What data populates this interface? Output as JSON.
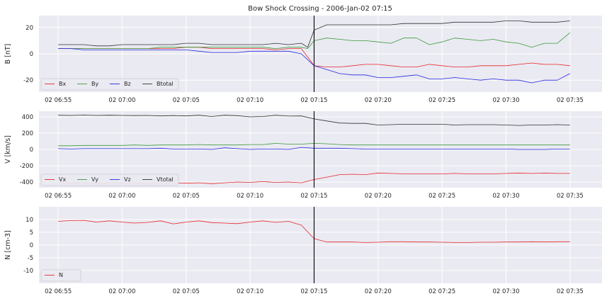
{
  "figure": {
    "title": "Bow Shock Crossing - 2006-Jan-02 07:15"
  },
  "chart_data": [
    {
      "type": "line",
      "ylabel": "B [nT]",
      "ylim": [
        -29,
        29
      ],
      "yticks": [
        -20,
        0,
        20
      ],
      "xlim": [
        -21.5,
        22.5
      ],
      "xticks": [
        {
          "value": -20,
          "label": "02 06:55"
        },
        {
          "value": -15,
          "label": "02 07:00"
        },
        {
          "value": -10,
          "label": "02 07:05"
        },
        {
          "value": -5,
          "label": "02 07:10"
        },
        {
          "value": 0,
          "label": "02 07:15"
        },
        {
          "value": 5,
          "label": "02 07:20"
        },
        {
          "value": 10,
          "label": "02 07:25"
        },
        {
          "value": 15,
          "label": "02 07:30"
        },
        {
          "value": 20,
          "label": "02 07:35"
        }
      ],
      "vline": 0,
      "grid": true,
      "legend_position": "lower-left",
      "legend_columns": 4,
      "series": [
        {
          "name": "Bx",
          "color": "#e8262b",
          "x": [
            -20,
            -19,
            -18,
            -17,
            -16,
            -15,
            -14,
            -13,
            -12,
            -11,
            -10,
            -9,
            -8,
            -7,
            -6,
            -5,
            -4,
            -3,
            -2,
            -1,
            0,
            1,
            2,
            3,
            4,
            5,
            6,
            7,
            8,
            9,
            10,
            11,
            12,
            13,
            14,
            15,
            16,
            17,
            18,
            19,
            20
          ],
          "y": [
            4,
            4,
            4,
            4,
            4,
            4,
            4,
            4,
            4,
            4,
            5,
            5,
            4,
            4,
            4,
            4,
            4,
            3,
            4,
            4,
            -9,
            -10,
            -10,
            -9,
            -8,
            -8,
            -9,
            -10,
            -10,
            -8,
            -9,
            -10,
            -10,
            -9,
            -9,
            -9,
            -8,
            -7,
            -8,
            -8,
            -9
          ]
        },
        {
          "name": "By",
          "color": "#3c9a3c",
          "x": [
            -20,
            -19,
            -18,
            -17,
            -16,
            -15,
            -14,
            -13,
            -12,
            -11,
            -10,
            -9,
            -8,
            -7,
            -6,
            -5,
            -4,
            -3,
            -2,
            -1,
            -0.5,
            0,
            1,
            2,
            3,
            4,
            5,
            6,
            7,
            8,
            9,
            10,
            11,
            12,
            13,
            14,
            15,
            16,
            17,
            18,
            19,
            20
          ],
          "y": [
            4,
            4,
            4,
            4,
            4,
            4,
            4,
            4,
            5,
            5,
            5,
            5,
            5,
            5,
            5,
            5,
            5,
            4,
            5,
            5,
            4,
            10,
            12,
            11,
            10,
            10,
            9,
            8,
            12,
            12,
            7,
            9,
            12,
            11,
            10,
            11,
            9,
            8,
            5,
            8,
            8,
            16
          ]
        },
        {
          "name": "Bz",
          "color": "#2727e0",
          "x": [
            -20,
            -19,
            -18,
            -17,
            -16,
            -15,
            -14,
            -13,
            -12,
            -11,
            -10,
            -9,
            -8,
            -7,
            -6,
            -5,
            -4,
            -3,
            -2,
            -1,
            0,
            1,
            2,
            3,
            4,
            5,
            6,
            7,
            8,
            9,
            10,
            11,
            12,
            13,
            14,
            15,
            16,
            17,
            18,
            19,
            20
          ],
          "y": [
            4,
            4,
            3,
            3,
            3,
            3,
            3,
            3,
            3,
            3,
            3,
            2,
            1,
            1,
            1,
            2,
            2,
            2,
            2,
            0,
            -9,
            -12,
            -15,
            -16,
            -16,
            -18,
            -18,
            -17,
            -16,
            -19,
            -19,
            -18,
            -19,
            -20,
            -19,
            -20,
            -20,
            -22,
            -20,
            -20,
            -15
          ]
        },
        {
          "name": "Btotal",
          "color": "#333333",
          "x": [
            -20,
            -19,
            -18,
            -17,
            -16,
            -15,
            -14,
            -13,
            -12,
            -11,
            -10,
            -9,
            -8,
            -7,
            -6,
            -5,
            -4,
            -3,
            -2,
            -1,
            -0.5,
            0,
            1,
            2,
            3,
            4,
            5,
            6,
            7,
            8,
            9,
            10,
            11,
            12,
            13,
            14,
            15,
            16,
            17,
            18,
            19,
            20
          ],
          "y": [
            7,
            7,
            7,
            6,
            6,
            7,
            7,
            7,
            7,
            7,
            8,
            8,
            7,
            7,
            7,
            7,
            7,
            8,
            7,
            8,
            5,
            18,
            22,
            22,
            22,
            22,
            22,
            22,
            23,
            23,
            23,
            23,
            24,
            24,
            24,
            24,
            25,
            25,
            24,
            24,
            24,
            25
          ]
        }
      ]
    },
    {
      "type": "line",
      "ylabel": "V [km/s]",
      "ylim": [
        -470,
        470
      ],
      "yticks": [
        -400,
        -200,
        0,
        200,
        400
      ],
      "xlim": [
        -21.5,
        22.5
      ],
      "xticks": [
        {
          "value": -20,
          "label": "02 06:55"
        },
        {
          "value": -15,
          "label": "02 07:00"
        },
        {
          "value": -10,
          "label": "02 07:05"
        },
        {
          "value": -5,
          "label": "02 07:10"
        },
        {
          "value": 0,
          "label": "02 07:15"
        },
        {
          "value": 5,
          "label": "02 07:20"
        },
        {
          "value": 10,
          "label": "02 07:25"
        },
        {
          "value": 15,
          "label": "02 07:30"
        },
        {
          "value": 20,
          "label": "02 07:35"
        }
      ],
      "vline": 0,
      "grid": true,
      "legend_position": "lower-left",
      "legend_columns": 4,
      "series": [
        {
          "name": "Vx",
          "color": "#e8262b",
          "x": [
            -20,
            -19,
            -18,
            -17,
            -16,
            -15,
            -14,
            -13,
            -12,
            -11,
            -10,
            -9,
            -8,
            -7,
            -6,
            -5,
            -4,
            -3,
            -2,
            -1,
            0,
            1,
            2,
            3,
            4,
            5,
            6,
            7,
            8,
            9,
            10,
            11,
            12,
            13,
            14,
            15,
            16,
            17,
            18,
            19,
            20
          ],
          "y": [
            -410,
            -415,
            -410,
            -420,
            -410,
            -415,
            -410,
            -420,
            -410,
            -410,
            -415,
            -410,
            -420,
            -410,
            -400,
            -405,
            -395,
            -405,
            -400,
            -410,
            -370,
            -340,
            -310,
            -305,
            -310,
            -290,
            -295,
            -300,
            -300,
            -300,
            -300,
            -295,
            -300,
            -300,
            -300,
            -295,
            -290,
            -295,
            -290,
            -295,
            -295
          ]
        },
        {
          "name": "Vy",
          "color": "#3c9a3c",
          "x": [
            -20,
            -19,
            -18,
            -17,
            -16,
            -15,
            -14,
            -13,
            -12,
            -11,
            -10,
            -9,
            -8,
            -7,
            -6,
            -5,
            -4,
            -3,
            -2,
            -1,
            0,
            1,
            2,
            3,
            4,
            5,
            6,
            7,
            8,
            9,
            10,
            11,
            12,
            13,
            14,
            15,
            16,
            17,
            18,
            19,
            20
          ],
          "y": [
            45,
            45,
            50,
            50,
            50,
            50,
            55,
            50,
            55,
            55,
            55,
            60,
            55,
            55,
            55,
            60,
            60,
            75,
            65,
            65,
            75,
            70,
            60,
            55,
            55,
            55,
            55,
            55,
            55,
            55,
            55,
            55,
            55,
            55,
            55,
            55,
            55,
            55,
            55,
            55,
            55
          ]
        },
        {
          "name": "Vz",
          "color": "#2727e0",
          "x": [
            -20,
            -19,
            -18,
            -17,
            -16,
            -15,
            -14,
            -13,
            -12,
            -11,
            -10,
            -9,
            -8,
            -7,
            -6,
            -5,
            -4,
            -3,
            -2,
            -1,
            0,
            1,
            2,
            3,
            4,
            5,
            6,
            7,
            8,
            9,
            10,
            11,
            12,
            13,
            14,
            15,
            16,
            17,
            18,
            19,
            20
          ],
          "y": [
            10,
            5,
            10,
            10,
            10,
            10,
            10,
            10,
            15,
            5,
            5,
            5,
            0,
            20,
            10,
            0,
            5,
            5,
            0,
            25,
            15,
            15,
            15,
            10,
            5,
            5,
            5,
            5,
            5,
            5,
            5,
            5,
            5,
            5,
            5,
            5,
            0,
            0,
            0,
            5,
            5
          ]
        },
        {
          "name": "Vtotal",
          "color": "#333333",
          "x": [
            -20,
            -19,
            -18,
            -17,
            -16,
            -15,
            -14,
            -13,
            -12,
            -11,
            -10,
            -9,
            -8,
            -7,
            -6,
            -5,
            -4,
            -3,
            -2,
            -1,
            0,
            1,
            2,
            3,
            4,
            5,
            6,
            7,
            8,
            9,
            10,
            11,
            12,
            13,
            14,
            15,
            16,
            17,
            18,
            19,
            20
          ],
          "y": [
            420,
            418,
            422,
            418,
            420,
            418,
            416,
            418,
            412,
            416,
            412,
            420,
            405,
            420,
            415,
            400,
            405,
            420,
            410,
            412,
            375,
            350,
            325,
            320,
            320,
            300,
            305,
            310,
            310,
            310,
            310,
            300,
            305,
            305,
            305,
            300,
            295,
            300,
            300,
            305,
            300
          ]
        }
      ]
    },
    {
      "type": "line",
      "ylabel": "N [cm-3]",
      "ylim": [
        -15,
        15
      ],
      "yticks": [
        -10,
        -5,
        0,
        5,
        10
      ],
      "xlim": [
        -21.5,
        22.5
      ],
      "xticks": [
        {
          "value": -20,
          "label": "02 06:55"
        },
        {
          "value": -15,
          "label": "02 07:00"
        },
        {
          "value": -10,
          "label": "02 07:05"
        },
        {
          "value": -5,
          "label": "02 07:10"
        },
        {
          "value": 0,
          "label": "02 07:15"
        },
        {
          "value": 5,
          "label": "02 07:20"
        },
        {
          "value": 10,
          "label": "02 07:25"
        },
        {
          "value": 15,
          "label": "02 07:30"
        },
        {
          "value": 20,
          "label": "02 07:35"
        }
      ],
      "vline": 0,
      "grid": true,
      "legend_position": "lower-left",
      "legend_columns": 1,
      "series": [
        {
          "name": "N",
          "color": "#e8262b",
          "x": [
            -20,
            -19,
            -18,
            -17,
            -16,
            -15,
            -14,
            -13,
            -12,
            -11,
            -10,
            -9,
            -8,
            -7,
            -6,
            -5,
            -4,
            -3,
            -2,
            -1,
            0,
            1,
            2,
            3,
            4,
            5,
            6,
            7,
            8,
            9,
            10,
            11,
            12,
            13,
            14,
            15,
            16,
            17,
            18,
            19,
            20
          ],
          "y": [
            9.3,
            9.6,
            9.7,
            9.0,
            9.5,
            9.0,
            8.6,
            8.9,
            9.5,
            8.3,
            9.0,
            9.5,
            8.8,
            8.6,
            8.4,
            9.0,
            9.5,
            8.9,
            9.3,
            7.8,
            2.5,
            1.2,
            1.2,
            1.2,
            1.0,
            1.1,
            1.3,
            1.3,
            1.2,
            1.2,
            1.1,
            1.0,
            1.0,
            1.1,
            1.1,
            1.2,
            1.2,
            1.3,
            1.2,
            1.3,
            1.3
          ]
        }
      ]
    }
  ]
}
